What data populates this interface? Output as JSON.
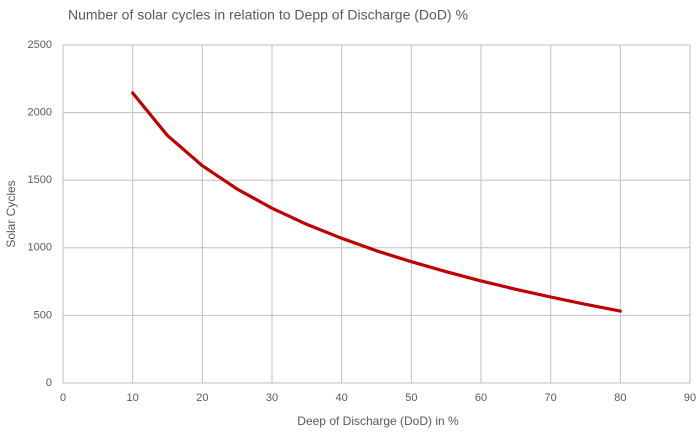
{
  "chart_data": {
    "type": "line",
    "title": "Number of solar cycles in relation to Depp of Discharge (DoD) %",
    "x_label": "Deep of Discharge (DoD) in %",
    "y_label": "Solar Cycles",
    "x": [
      10,
      15,
      20,
      25,
      30,
      35,
      40,
      45,
      50,
      55,
      60,
      65,
      70,
      75,
      80
    ],
    "series": [
      {
        "name": "Solar Cycles",
        "color": "#c00000",
        "values": [
          2145,
          1830,
          1607,
          1434,
          1293,
          1173,
          1070,
          978,
          897,
          823,
          755,
          693,
          636,
          582,
          532
        ]
      }
    ],
    "xlim": [
      0,
      90
    ],
    "xticks": [
      0,
      10,
      20,
      30,
      40,
      50,
      60,
      70,
      80,
      90
    ],
    "ylim": [
      0,
      2500
    ],
    "yticks": [
      0,
      500,
      1000,
      1500,
      2000,
      2500
    ],
    "grid": true
  }
}
